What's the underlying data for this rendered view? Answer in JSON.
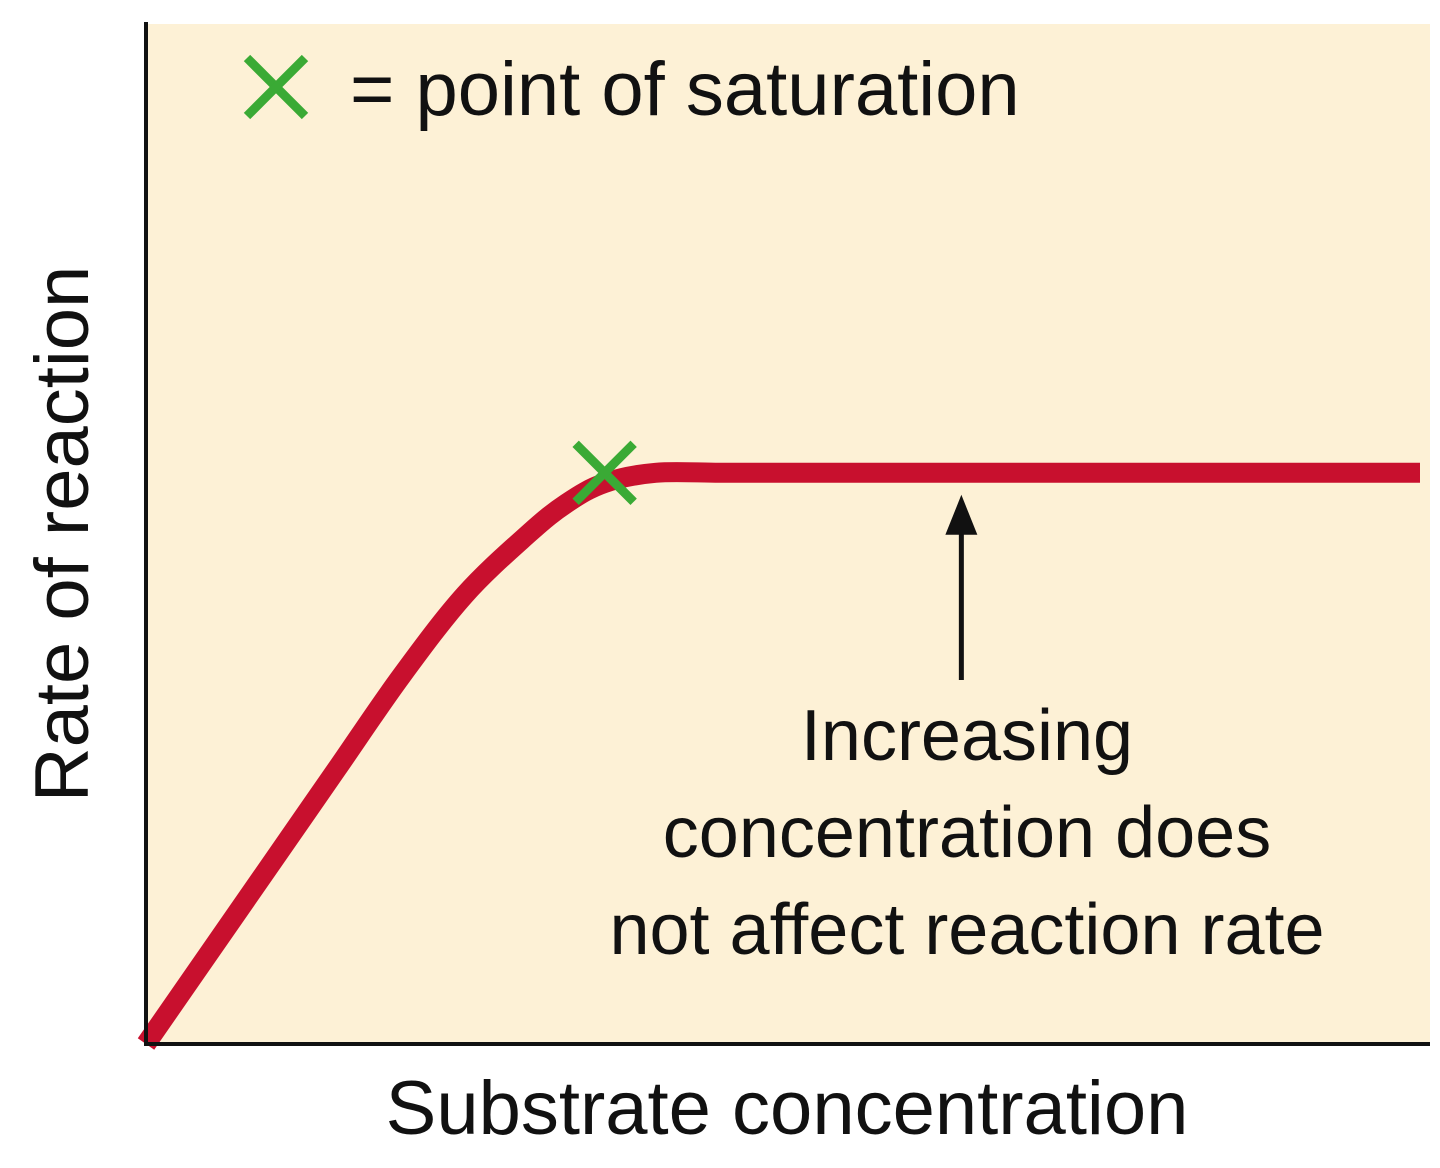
{
  "chart_data": {
    "type": "line",
    "xlabel": "Substrate concentration",
    "ylabel": "Rate of reaction",
    "xlim": [
      0,
      1
    ],
    "ylim": [
      0,
      1
    ],
    "series": [
      {
        "x": [
          0,
          0.05,
          0.1,
          0.15,
          0.2,
          0.25,
          0.3,
          0.33,
          0.36,
          0.4,
          0.45,
          0.5,
          0.6,
          0.7,
          0.8,
          0.9,
          1.0
        ],
        "values": [
          0,
          0.09,
          0.18,
          0.27,
          0.36,
          0.44,
          0.5,
          0.53,
          0.55,
          0.56,
          0.56,
          0.56,
          0.56,
          0.56,
          0.56,
          0.56,
          0.56
        ]
      }
    ],
    "saturation_point": {
      "x": 0.36,
      "y": 0.56
    },
    "legend": {
      "text": "= point of saturation",
      "marker": "green-x",
      "placement": "top-left"
    },
    "annotations": [
      {
        "lines": [
          "Increasing",
          "concentration does",
          "not affect reaction rate"
        ],
        "arrow_target": {
          "x": 0.64,
          "y": 0.56
        }
      }
    ],
    "grid": false,
    "colors": {
      "plot_background": "#fdf1d6",
      "curve": "#c8102e",
      "marker": "#3aaa35",
      "axis": "#111111",
      "text": "#111111"
    }
  }
}
